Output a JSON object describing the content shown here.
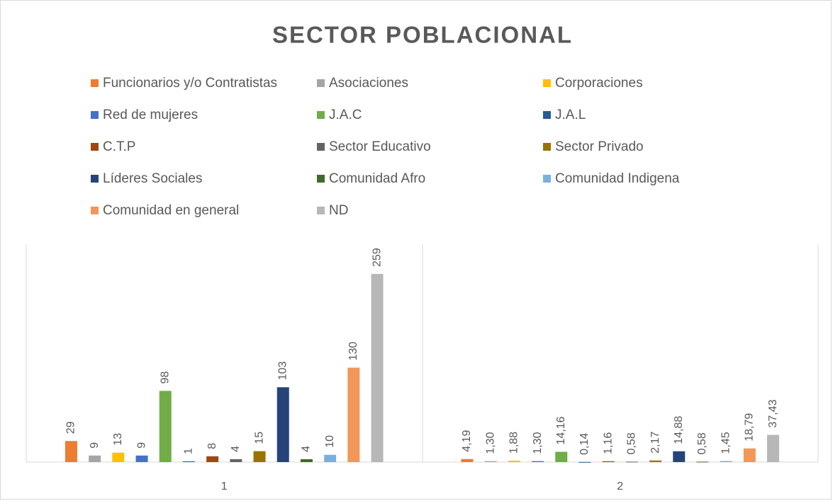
{
  "chart_data": {
    "type": "bar",
    "title": "SECTOR POBLACIONAL",
    "categories": [
      "1",
      "2"
    ],
    "ylim": [
      0,
      300
    ],
    "series": [
      {
        "name": "Funcionarios y/o Contratistas",
        "color": "#ed7d31",
        "values": [
          29,
          4.19
        ],
        "value_labels": [
          "29",
          "4,19"
        ]
      },
      {
        "name": "Asociaciones",
        "color": "#a5a5a5",
        "values": [
          9,
          1.3
        ],
        "value_labels": [
          "9",
          "1,30"
        ]
      },
      {
        "name": "Corporaciones",
        "color": "#ffc000",
        "values": [
          13,
          1.88
        ],
        "value_labels": [
          "13",
          "1,88"
        ]
      },
      {
        "name": "Red de mujeres",
        "color": "#4472c4",
        "values": [
          9,
          1.3
        ],
        "value_labels": [
          "9",
          "1,30"
        ]
      },
      {
        "name": "J.A.C",
        "color": "#70ad47",
        "values": [
          98,
          14.16
        ],
        "value_labels": [
          "98",
          "14,16"
        ]
      },
      {
        "name": "J.A.L",
        "color": "#255e91",
        "values": [
          1,
          0.14
        ],
        "value_labels": [
          "1",
          "0,14"
        ]
      },
      {
        "name": "C.T.P",
        "color": "#9e480e",
        "values": [
          8,
          1.16
        ],
        "value_labels": [
          "8",
          "1,16"
        ]
      },
      {
        "name": "Sector Educativo",
        "color": "#636363",
        "values": [
          4,
          0.58
        ],
        "value_labels": [
          "4",
          "0,58"
        ]
      },
      {
        "name": "Sector Privado",
        "color": "#997300",
        "values": [
          15,
          2.17
        ],
        "value_labels": [
          "15",
          "2,17"
        ]
      },
      {
        "name": "Líderes Sociales",
        "color": "#264478",
        "values": [
          103,
          14.88
        ],
        "value_labels": [
          "103",
          "14,88"
        ]
      },
      {
        "name": "Comunidad Afro",
        "color": "#43682b",
        "values": [
          4,
          0.58
        ],
        "value_labels": [
          "4",
          "0,58"
        ]
      },
      {
        "name": "Comunidad Indigena",
        "color": "#7cafdd",
        "values": [
          10,
          1.45
        ],
        "value_labels": [
          "10",
          "1,45"
        ]
      },
      {
        "name": "Comunidad en general",
        "color": "#f1975a",
        "values": [
          130,
          18.79
        ],
        "value_labels": [
          "130",
          "18,79"
        ]
      },
      {
        "name": "ND",
        "color": "#b7b7b7",
        "values": [
          259,
          37.43
        ],
        "value_labels": [
          "259",
          "37,43"
        ]
      }
    ]
  }
}
